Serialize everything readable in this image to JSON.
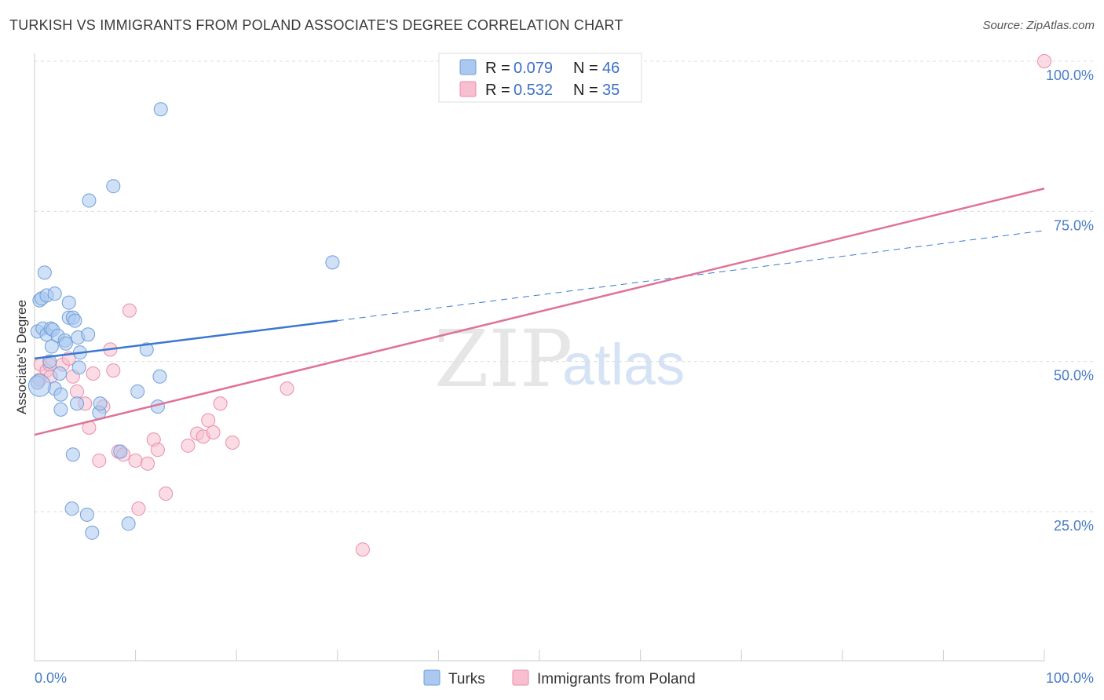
{
  "header": {
    "title": "TURKISH VS IMMIGRANTS FROM POLAND ASSOCIATE'S DEGREE CORRELATION CHART",
    "source": "Source: ZipAtlas.com"
  },
  "watermark": {
    "zip": "ZIP",
    "atlas": "atlas"
  },
  "legend": {
    "r_label": "R =",
    "n_label": "N =",
    "items": [
      {
        "series": "Turks",
        "r": "0.079",
        "n": "46"
      },
      {
        "series": "Immigrants from Poland",
        "r": "0.532",
        "n": "35"
      }
    ]
  },
  "colors": {
    "turks_fill": "#aac8f0",
    "turks_stroke": "#6f9fd8",
    "turks_line": "#3a78d0",
    "poland_fill": "#f7bfd0",
    "poland_stroke": "#e98eab",
    "poland_line": "#e07298"
  },
  "chart_data": {
    "type": "scatter",
    "title": "TURKISH VS IMMIGRANTS FROM POLAND ASSOCIATE'S DEGREE CORRELATION CHART",
    "xlabel": "",
    "ylabel": "Associate's Degree",
    "xlim": [
      0,
      100
    ],
    "ylim": [
      0,
      102
    ],
    "x_tick_labels": [
      {
        "value": 0,
        "label": "0.0%"
      },
      {
        "value": 100,
        "label": "100.0%"
      }
    ],
    "y_tick_labels": [
      {
        "value": 25,
        "label": "25.0%"
      },
      {
        "value": 50,
        "label": "50.0%"
      },
      {
        "value": 75,
        "label": "75.0%"
      },
      {
        "value": 100,
        "label": "100.0%"
      }
    ],
    "grid": true,
    "series": [
      {
        "name": "Turks",
        "points": [
          [
            0.3,
            46.5
          ],
          [
            0.3,
            55.0
          ],
          [
            0.5,
            60.2
          ],
          [
            0.7,
            60.5
          ],
          [
            0.8,
            55.5
          ],
          [
            1.0,
            64.8
          ],
          [
            1.2,
            54.5
          ],
          [
            1.2,
            61.0
          ],
          [
            1.5,
            50.0
          ],
          [
            1.6,
            55.5
          ],
          [
            1.7,
            52.5
          ],
          [
            1.8,
            55.3
          ],
          [
            2.0,
            45.5
          ],
          [
            2.0,
            61.3
          ],
          [
            2.3,
            54.3
          ],
          [
            2.5,
            48.0
          ],
          [
            2.6,
            42.0
          ],
          [
            2.6,
            44.5
          ],
          [
            3.0,
            53.5
          ],
          [
            3.1,
            53.0
          ],
          [
            3.4,
            59.8
          ],
          [
            3.4,
            57.3
          ],
          [
            3.8,
            57.3
          ],
          [
            3.8,
            34.5
          ],
          [
            3.7,
            25.5
          ],
          [
            4.0,
            56.8
          ],
          [
            4.2,
            43.0
          ],
          [
            4.3,
            54.0
          ],
          [
            4.4,
            49.0
          ],
          [
            4.5,
            51.5
          ],
          [
            5.2,
            24.5
          ],
          [
            5.3,
            54.5
          ],
          [
            5.4,
            76.8
          ],
          [
            5.7,
            21.5
          ],
          [
            6.4,
            41.5
          ],
          [
            6.5,
            43.0
          ],
          [
            7.8,
            79.2
          ],
          [
            8.5,
            35.0
          ],
          [
            9.3,
            23.0
          ],
          [
            10.2,
            45.0
          ],
          [
            11.1,
            52.0
          ],
          [
            12.2,
            42.5
          ],
          [
            12.4,
            47.5
          ],
          [
            12.5,
            92.0
          ],
          [
            29.5,
            66.5
          ],
          [
            0.5,
            46.0
          ]
        ],
        "trend": {
          "x0": 0,
          "y0": 50.5,
          "x1": 30,
          "y1": 56.8,
          "dashed_to_x": 100,
          "dashed_to_y": 71.8
        }
      },
      {
        "name": "Immigrants from Poland",
        "points": [
          [
            0.5,
            47.0
          ],
          [
            0.6,
            49.5
          ],
          [
            1.2,
            48.5
          ],
          [
            1.5,
            49.5
          ],
          [
            1.6,
            47.5
          ],
          [
            2.8,
            49.5
          ],
          [
            3.4,
            50.5
          ],
          [
            3.8,
            47.5
          ],
          [
            4.2,
            45.0
          ],
          [
            5.0,
            43.0
          ],
          [
            5.4,
            39.0
          ],
          [
            5.8,
            48.0
          ],
          [
            6.4,
            33.5
          ],
          [
            6.8,
            42.5
          ],
          [
            7.5,
            52.0
          ],
          [
            7.8,
            48.5
          ],
          [
            8.3,
            35.0
          ],
          [
            8.8,
            34.5
          ],
          [
            9.4,
            58.5
          ],
          [
            10.0,
            33.5
          ],
          [
            10.3,
            25.5
          ],
          [
            11.2,
            33.0
          ],
          [
            11.8,
            37.0
          ],
          [
            12.2,
            35.3
          ],
          [
            13.0,
            28.0
          ],
          [
            15.2,
            36.0
          ],
          [
            16.1,
            38.0
          ],
          [
            16.7,
            37.5
          ],
          [
            17.2,
            40.2
          ],
          [
            17.7,
            38.2
          ],
          [
            18.4,
            43.0
          ],
          [
            19.6,
            36.5
          ],
          [
            25.0,
            45.5
          ],
          [
            32.5,
            18.7
          ],
          [
            100.0,
            100.0
          ]
        ],
        "trend": {
          "x0": 0,
          "y0": 37.8,
          "x1": 100,
          "y1": 78.8
        }
      }
    ]
  }
}
